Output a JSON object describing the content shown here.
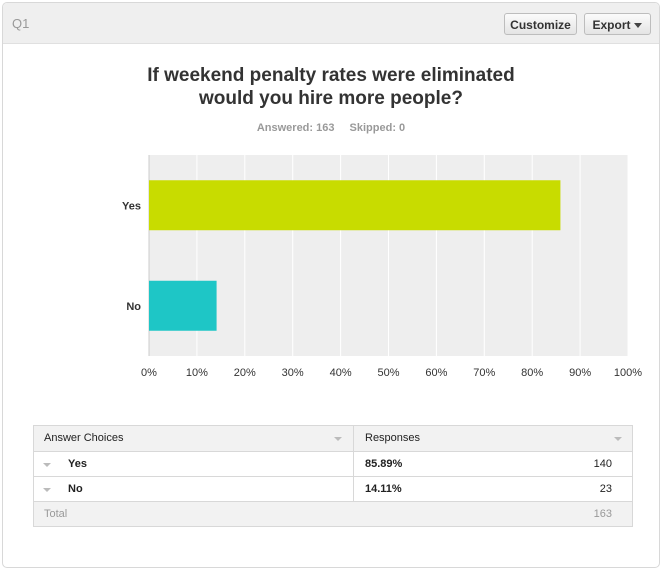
{
  "header": {
    "question_number": "Q1",
    "customize_label": "Customize",
    "export_label": "Export"
  },
  "question": {
    "title_line1": "If weekend penalty rates were eliminated",
    "title_line2": "would you hire more people?"
  },
  "stats": {
    "answered": "Answered: 163",
    "skipped": "Skipped: 0"
  },
  "colors": {
    "yes": "#c8dc00",
    "no": "#1ec6c6",
    "plot_bg": "#eeeeee"
  },
  "chart_data": {
    "type": "bar",
    "orientation": "horizontal",
    "categories": [
      "Yes",
      "No"
    ],
    "values": [
      85.89,
      14.11
    ],
    "xlim": [
      0,
      100
    ],
    "xticks": [
      "0%",
      "10%",
      "20%",
      "30%",
      "40%",
      "50%",
      "60%",
      "70%",
      "80%",
      "90%",
      "100%"
    ],
    "grid": true
  },
  "table": {
    "headers": {
      "choices": "Answer Choices",
      "responses": "Responses"
    },
    "rows": [
      {
        "choice": "Yes",
        "percent": "85.89%",
        "count": "140"
      },
      {
        "choice": "No",
        "percent": "14.11%",
        "count": "23"
      }
    ],
    "total": {
      "label": "Total",
      "count": "163"
    }
  }
}
